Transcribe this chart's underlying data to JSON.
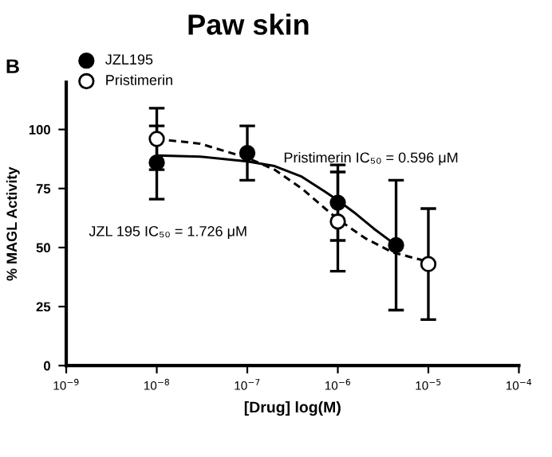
{
  "chart_data": {
    "type": "scatter",
    "title": "Paw skin",
    "xlabel": "[Drug] log(M)",
    "ylabel": "% MAGL Activity",
    "annotations": [
      "B",
      "Pristimerin IC₅₀ = 0.596 μM",
      "JZL 195 IC₅₀ = 1.726 μM"
    ],
    "log": "x",
    "xlim": [
      1e-09,
      0.0001
    ],
    "xticks": [
      {
        "value": 1e-09,
        "label": "10$^{−9}$"
      },
      {
        "value": 1e-08,
        "label": "10$^{−8}$"
      },
      {
        "value": 1e-07,
        "label": "10$^{−7}$"
      },
      {
        "value": 1e-06,
        "label": "10$^{−6}$"
      },
      {
        "value": 1e-05,
        "label": "10$^{−5}$"
      },
      {
        "value": 0.0001,
        "label": "10$^{−4}$"
      }
    ],
    "ylim": [
      0,
      120
    ],
    "yticks": [
      0,
      25,
      50,
      75,
      100
    ],
    "grid": false,
    "legend": "top left",
    "marker": "circle",
    "series": [
      {
        "name": "JZL195",
        "color": "#000000",
        "x": [
          1e-08,
          1e-07,
          1e-06,
          4.4e-06
        ],
        "values": [
          86,
          90,
          69,
          51
        ],
        "errors": [
          15.5,
          11.5,
          16,
          27.5
        ]
      },
      {
        "name": "Pristimerin",
        "color": "#000000",
        "x": [
          1e-08,
          1e-07,
          1e-06,
          1e-05
        ],
        "values": [
          96,
          null,
          61,
          43
        ],
        "errors": [
          13,
          null,
          21,
          23.5
        ]
      },
      {
        "type": "line",
        "color": "#000000",
        "line_style": "solid",
        "marker": "none",
        "x": [
          1e-08,
          3e-08,
          1e-07,
          2e-07,
          4e-07,
          7e-07,
          1e-06,
          1.5e-06,
          2.5e-06,
          4.4e-06
        ],
        "values": [
          89,
          88.5,
          86.5,
          84.5,
          80,
          74,
          70,
          65,
          58,
          51
        ]
      },
      {
        "type": "line",
        "color": "#000000",
        "line_style": "dashed",
        "marker": "none",
        "x": [
          1e-08,
          3e-08,
          1e-07,
          2e-07,
          4e-07,
          7e-07,
          1e-06,
          2e-06,
          4e-06,
          1e-05
        ],
        "values": [
          96,
          94,
          88,
          83,
          75,
          67,
          62,
          54,
          48,
          44
        ]
      }
    ]
  }
}
